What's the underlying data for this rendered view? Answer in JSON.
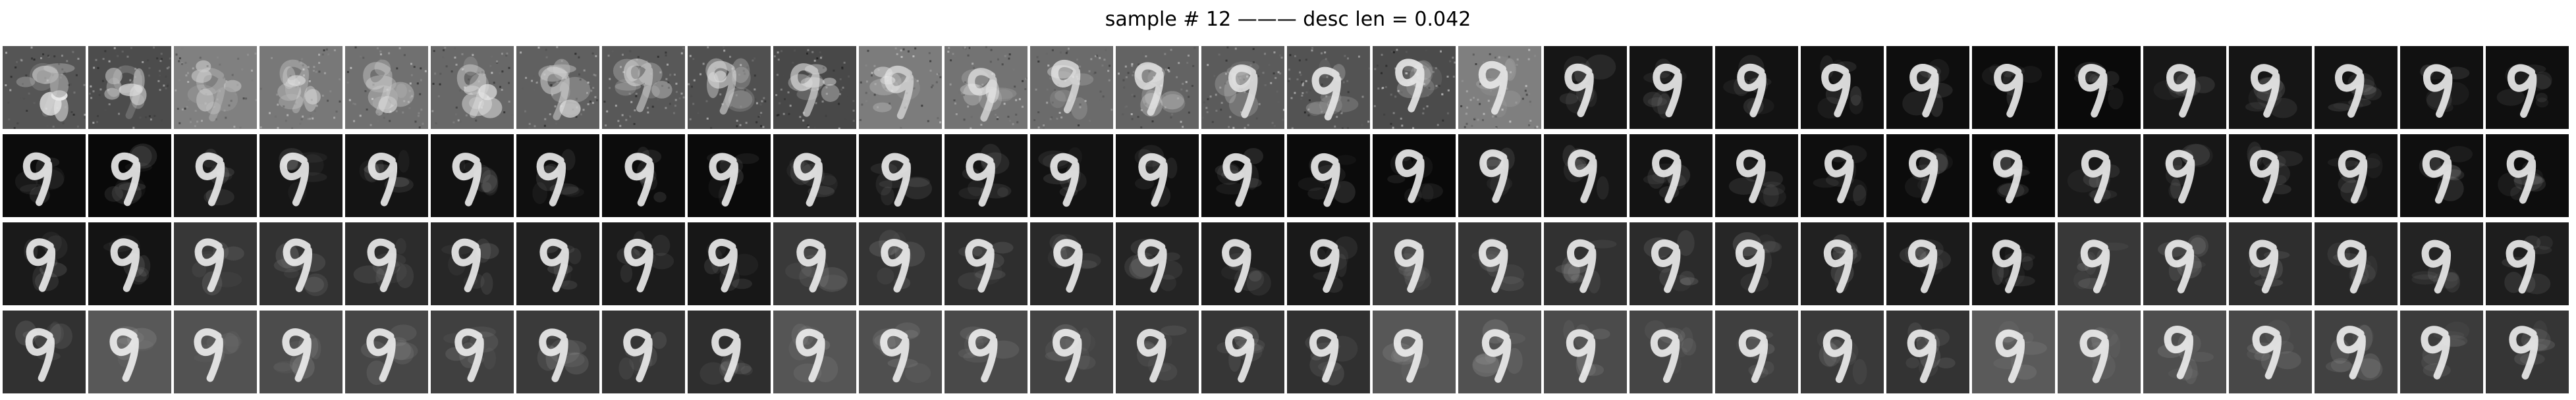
{
  "figure": {
    "title": "sample # 12 ——— desc len = 0.042"
  },
  "grid": {
    "rows": 4,
    "cols": 30,
    "content": "reconstructed grayscale digit images"
  }
}
